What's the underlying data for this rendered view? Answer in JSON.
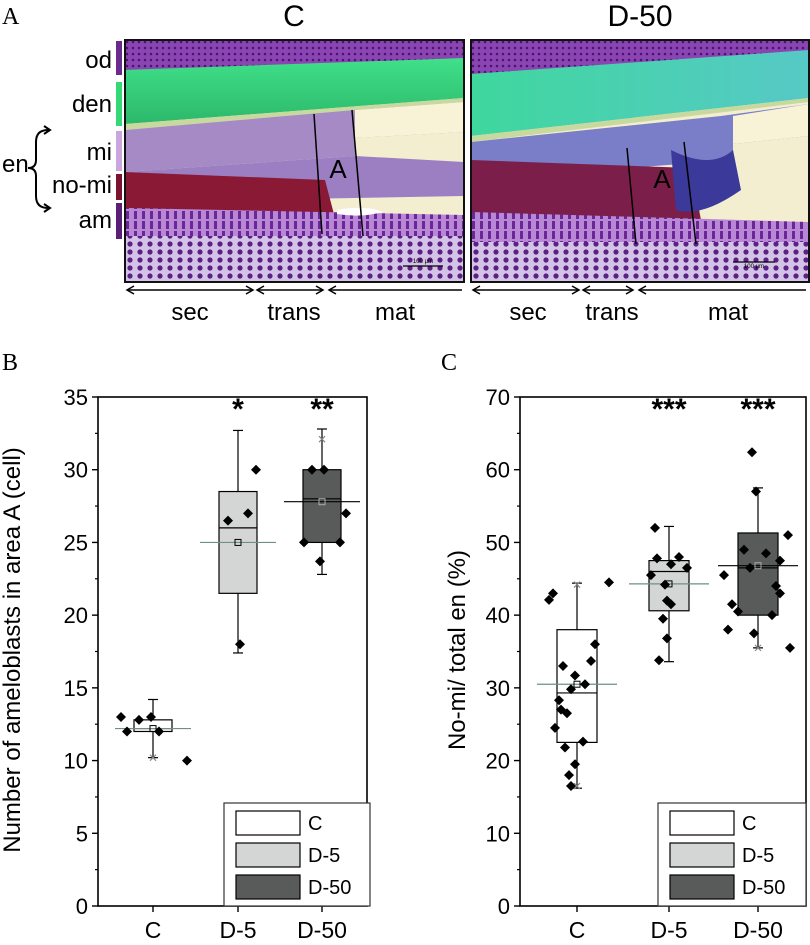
{
  "panelA": {
    "letter": "A",
    "images": [
      {
        "title": "C",
        "region_label": "A",
        "scale_text": "100 µm"
      },
      {
        "title": "D-50",
        "region_label": "A",
        "scale_text": "100 µm"
      }
    ],
    "layers": [
      {
        "label": "od",
        "color": "#6a2b8f"
      },
      {
        "label": "den",
        "color": "#35d876"
      },
      {
        "label": "mi",
        "color": "#c9a6dc"
      },
      {
        "label": "no-mi",
        "color": "#7b1330"
      },
      {
        "label": "am",
        "color": "#5a1f76"
      }
    ],
    "bracket_label": "en",
    "stages": [
      "sec",
      "trans",
      "mat"
    ]
  },
  "chart_data": [
    {
      "panel_letter": "B",
      "type": "box",
      "title": "",
      "xlabel": "",
      "ylabel": "Number of ameloblasts in area A (cell)",
      "ylim": [
        0,
        35
      ],
      "yticks": [
        0,
        5,
        10,
        15,
        20,
        25,
        30,
        35
      ],
      "categories": [
        "C",
        "D-5",
        "D-50"
      ],
      "significance": [
        "",
        "*",
        "**"
      ],
      "legend": [
        "C",
        "D-5",
        "D-50"
      ],
      "legend_position": "bottom-right",
      "series": [
        {
          "name": "C",
          "fill": "#ffffff",
          "q1": 12,
          "median": 12.2,
          "q3": 12.8,
          "mean": 12.2,
          "mean_line": 12.2,
          "whisker_low": 10.2,
          "whisker_high": 14.2,
          "outliers_x": [
            10.2
          ],
          "points": [
            13,
            12,
            12.8,
            13,
            12,
            10
          ]
        },
        {
          "name": "D-5",
          "fill": "#d4d6d5",
          "q1": 21.5,
          "median": 26,
          "q3": 28.5,
          "mean": 25,
          "mean_line": 25,
          "whisker_low": 17.4,
          "whisker_high": 32.7,
          "outliers_x": [],
          "points": [
            30,
            27,
            26.5,
            18
          ]
        },
        {
          "name": "D-50",
          "fill": "#595b5a",
          "q1": 25,
          "median": 28,
          "q3": 30,
          "mean": 27.8,
          "mean_line": 27.8,
          "whisker_low": 22.8,
          "whisker_high": 32.8,
          "outliers_x": [
            32.1
          ],
          "points": [
            30,
            27,
            25,
            23.7,
            30,
            25
          ]
        }
      ]
    },
    {
      "panel_letter": "C",
      "type": "box",
      "title": "",
      "xlabel": "",
      "ylabel": "No-mi/ total en (%)",
      "ylim": [
        0,
        70
      ],
      "yticks": [
        0,
        10,
        20,
        30,
        40,
        50,
        60,
        70
      ],
      "categories": [
        "C",
        "D-5",
        "D-50"
      ],
      "significance": [
        "",
        "***",
        "***"
      ],
      "legend": [
        "C",
        "D-5",
        "D-50"
      ],
      "legend_position": "bottom-right",
      "series": [
        {
          "name": "C",
          "fill": "#ffffff",
          "q1": 22.5,
          "median": 29.3,
          "q3": 38,
          "mean": 30.5,
          "mean_line": 30.5,
          "whisker_low": 16.2,
          "whisker_high": 44.4,
          "outliers_x": [
            16.5,
            44.2
          ],
          "points": [
            42.1,
            43,
            44.5,
            36,
            33.7,
            33,
            31.7,
            30.5,
            29.8,
            28.3,
            27,
            26.5,
            24.5,
            21.8,
            18,
            16.5,
            19.5,
            22.6
          ]
        },
        {
          "name": "D-5",
          "fill": "#d4d6d5",
          "q1": 40.6,
          "median": 46,
          "q3": 47.5,
          "mean": 44.3,
          "mean_line": 44.3,
          "whisker_low": 33.6,
          "whisker_high": 52.2,
          "outliers_x": [],
          "points": [
            52,
            48,
            47,
            45.5,
            44.2,
            42,
            41.5,
            39.5,
            36.8,
            33.8,
            46.5,
            47.8
          ]
        },
        {
          "name": "D-50",
          "fill": "#595b5a",
          "q1": 40,
          "median": 46.5,
          "q3": 51.3,
          "mean": 46.8,
          "mean_line": 46.8,
          "whisker_low": 35.5,
          "whisker_high": 57.5,
          "outliers_x": [
            35.5
          ],
          "points": [
            62.4,
            57,
            51,
            49,
            47.5,
            46.5,
            45.5,
            43,
            41.5,
            40.5,
            40,
            38,
            37.5,
            35.5,
            48.5,
            44
          ]
        }
      ]
    }
  ]
}
